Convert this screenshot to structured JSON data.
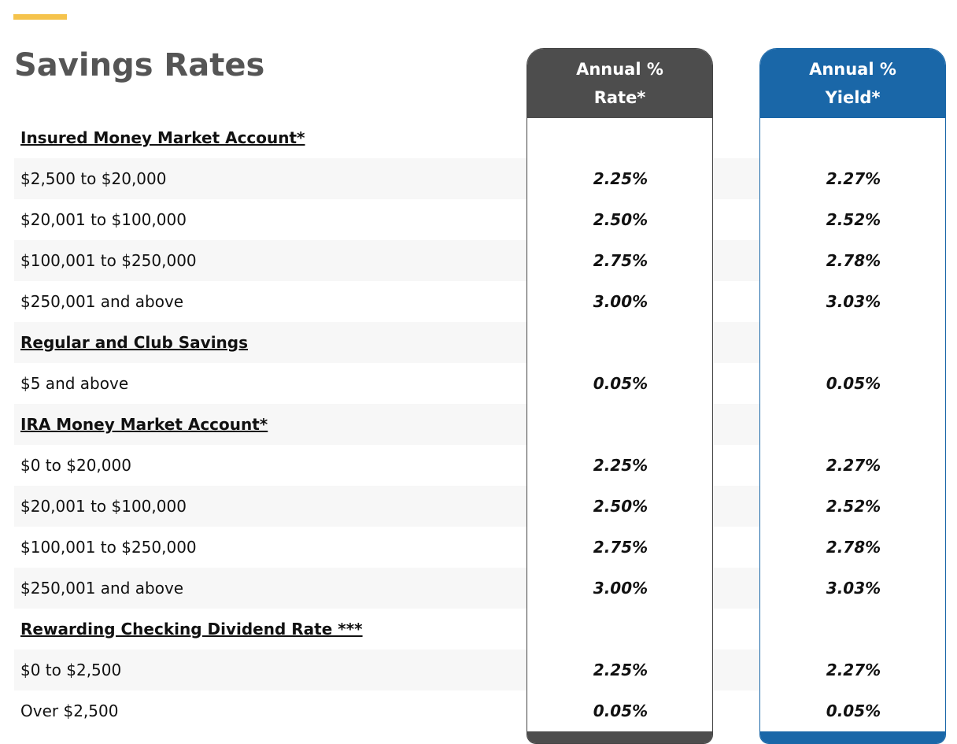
{
  "header": {
    "title": "Savings Rates"
  },
  "columns": [
    {
      "lines": [
        "Annual %",
        "Rate*"
      ]
    },
    {
      "lines": [
        "Annual %",
        "Yield*"
      ]
    }
  ],
  "sections": [
    {
      "title": "Insured Money Market Account*",
      "rows": [
        {
          "tier": "$2,500 to $20,000",
          "rate": "2.25%",
          "yield": "2.27%"
        },
        {
          "tier": "$20,001 to $100,000",
          "rate": "2.50%",
          "yield": "2.52%"
        },
        {
          "tier": "$100,001 to $250,000",
          "rate": "2.75%",
          "yield": "2.78%"
        },
        {
          "tier": "$250,001 and above",
          "rate": "3.00%",
          "yield": "3.03%"
        }
      ]
    },
    {
      "title": "Regular and Club Savings",
      "rows": [
        {
          "tier": "$5 and above",
          "rate": "0.05%",
          "yield": "0.05%"
        }
      ]
    },
    {
      "title": "IRA Money Market Account*",
      "rows": [
        {
          "tier": "$0 to $20,000",
          "rate": "2.25%",
          "yield": "2.27%"
        },
        {
          "tier": "$20,001 to $100,000",
          "rate": "2.50%",
          "yield": "2.52%"
        },
        {
          "tier": "$100,001 to $250,000",
          "rate": "2.75%",
          "yield": "2.78%"
        },
        {
          "tier": "$250,001 and above",
          "rate": "3.00%",
          "yield": "3.03%"
        }
      ]
    },
    {
      "title": "Rewarding Checking Dividend Rate ***",
      "rows": [
        {
          "tier": "$0 to $2,500",
          "rate": "2.25%",
          "yield": "2.27%"
        },
        {
          "tier": "Over $2,500",
          "rate": "0.05%",
          "yield": "0.05%"
        }
      ]
    }
  ]
}
